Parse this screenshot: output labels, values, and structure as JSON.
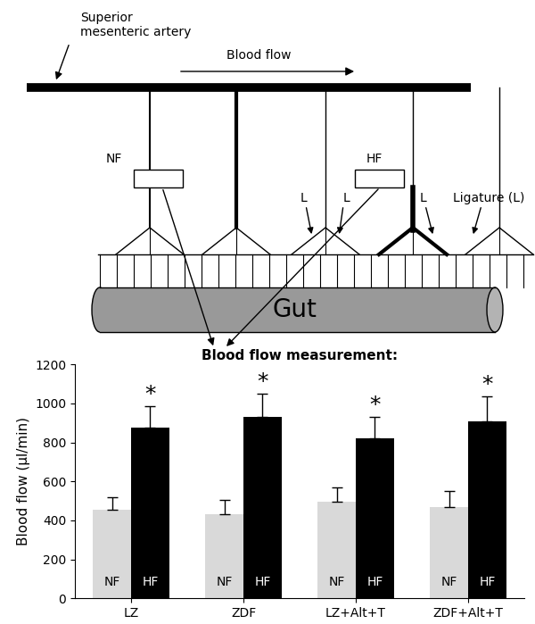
{
  "diagram": {
    "artery_label": "Superior\nmesenteric artery",
    "flow_label": "Blood flow",
    "measurement_sites": [
      "NF",
      "HF"
    ],
    "ligature_labels": [
      "L",
      "L",
      "L"
    ],
    "ligature_legend": "Ligature (L)",
    "organ_label": "Gut"
  },
  "chart_data": {
    "type": "bar",
    "title": "Blood flow measurement:",
    "y_label": "Blood flow (µl/min)",
    "categories": [
      "LZ",
      "ZDF",
      "LZ+Alt+T",
      "ZDF+Alt+T"
    ],
    "series": [
      {
        "name": "NF",
        "color": "#d9d9d9",
        "values": [
          455,
          430,
          495,
          470
        ],
        "errors": [
          65,
          75,
          75,
          80
        ]
      },
      {
        "name": "HF",
        "color": "#000000",
        "values": [
          875,
          930,
          820,
          910
        ],
        "errors": [
          110,
          120,
          110,
          125
        ],
        "annotations": [
          "*",
          "*",
          "*",
          "*"
        ]
      }
    ],
    "ylim": [
      0,
      1200
    ],
    "yticks": [
      0,
      200,
      400,
      600,
      800,
      1000,
      1200
    ],
    "grid": false
  }
}
